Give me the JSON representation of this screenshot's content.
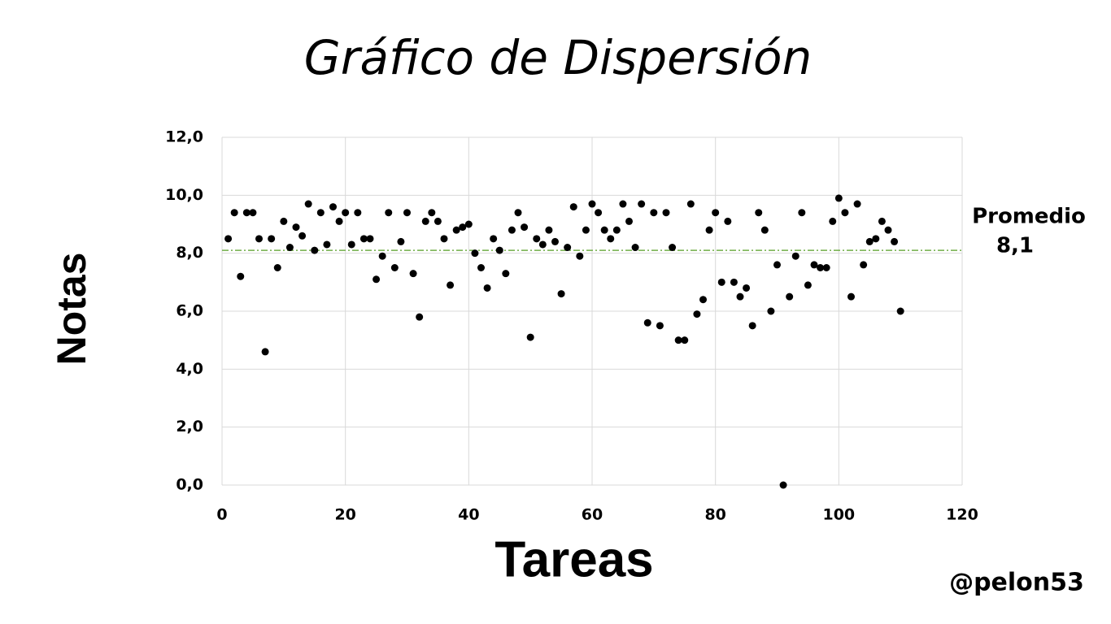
{
  "chart_data": {
    "type": "scatter",
    "title": "Gráfico de Dispersión",
    "x_label": "Tareas",
    "y_label": "Notas",
    "credit": "@pelon53",
    "series": [
      {
        "name": "Notas",
        "color": "#000000",
        "x": [
          1,
          2,
          3,
          4,
          5,
          6,
          7,
          8,
          9,
          10,
          11,
          12,
          13,
          14,
          15,
          16,
          17,
          18,
          19,
          20,
          21,
          22,
          23,
          24,
          25,
          26,
          27,
          28,
          29,
          30,
          31,
          32,
          33,
          34,
          35,
          36,
          37,
          38,
          39,
          40,
          41,
          42,
          43,
          44,
          45,
          46,
          47,
          48,
          49,
          50,
          51,
          52,
          53,
          54,
          55,
          56,
          57,
          58,
          59,
          60,
          61,
          62,
          63,
          64,
          65,
          66,
          67,
          68,
          69,
          70,
          71,
          72,
          73,
          74,
          75,
          76,
          77,
          78,
          79,
          80,
          81,
          82,
          83,
          84,
          85,
          86,
          87,
          88,
          89,
          90,
          91,
          92,
          93,
          94,
          95,
          96,
          97,
          98,
          99,
          100,
          101,
          102,
          103,
          104,
          105,
          106,
          107,
          108,
          109,
          110
        ],
        "values": [
          8.5,
          9.4,
          7.2,
          9.4,
          9.4,
          8.5,
          4.6,
          8.5,
          7.5,
          9.1,
          8.2,
          8.9,
          8.6,
          9.7,
          8.1,
          9.4,
          8.3,
          9.6,
          9.1,
          9.4,
          8.3,
          9.4,
          8.5,
          8.5,
          7.1,
          7.9,
          9.4,
          7.5,
          8.4,
          9.4,
          7.3,
          5.8,
          9.1,
          9.4,
          9.1,
          8.5,
          6.9,
          8.8,
          8.9,
          9.0,
          8.0,
          7.5,
          6.8,
          8.5,
          8.1,
          7.3,
          8.8,
          9.4,
          8.9,
          5.1,
          8.5,
          8.3,
          8.8,
          8.4,
          6.6,
          8.2,
          9.6,
          7.9,
          8.8,
          9.7,
          9.4,
          8.8,
          8.5,
          8.8,
          9.7,
          9.1,
          8.2,
          9.7,
          5.6,
          9.4,
          5.5,
          9.4,
          8.2,
          5.0,
          5.0,
          9.7,
          5.9,
          6.4,
          8.8,
          9.4,
          7.0,
          9.1,
          7.0,
          6.5,
          6.8,
          5.5,
          9.4,
          8.8,
          6.0,
          7.6,
          0.0,
          6.5,
          7.9,
          9.4,
          6.9,
          7.6,
          7.5,
          7.5,
          9.1,
          9.9,
          9.4,
          6.5,
          9.7,
          7.6,
          8.4,
          8.5,
          9.1,
          8.8,
          8.4,
          6.0
        ]
      }
    ],
    "xlim": [
      0,
      120
    ],
    "xticks": [
      0,
      20,
      40,
      60,
      80,
      100,
      120
    ],
    "ylim": [
      0,
      12
    ],
    "yticks": [
      {
        "value": 0,
        "label": "0,0"
      },
      {
        "value": 2,
        "label": "2,0"
      },
      {
        "value": 4,
        "label": "4,0"
      },
      {
        "value": 6,
        "label": "6,0"
      },
      {
        "value": 8,
        "label": "8,0"
      },
      {
        "value": 10,
        "label": "10,0"
      },
      {
        "value": 12,
        "label": "12,0"
      }
    ],
    "grid": true,
    "average_line": {
      "value": 8.1,
      "label": "Promedio",
      "value_label": "8,1",
      "color": "#70ad47"
    }
  }
}
